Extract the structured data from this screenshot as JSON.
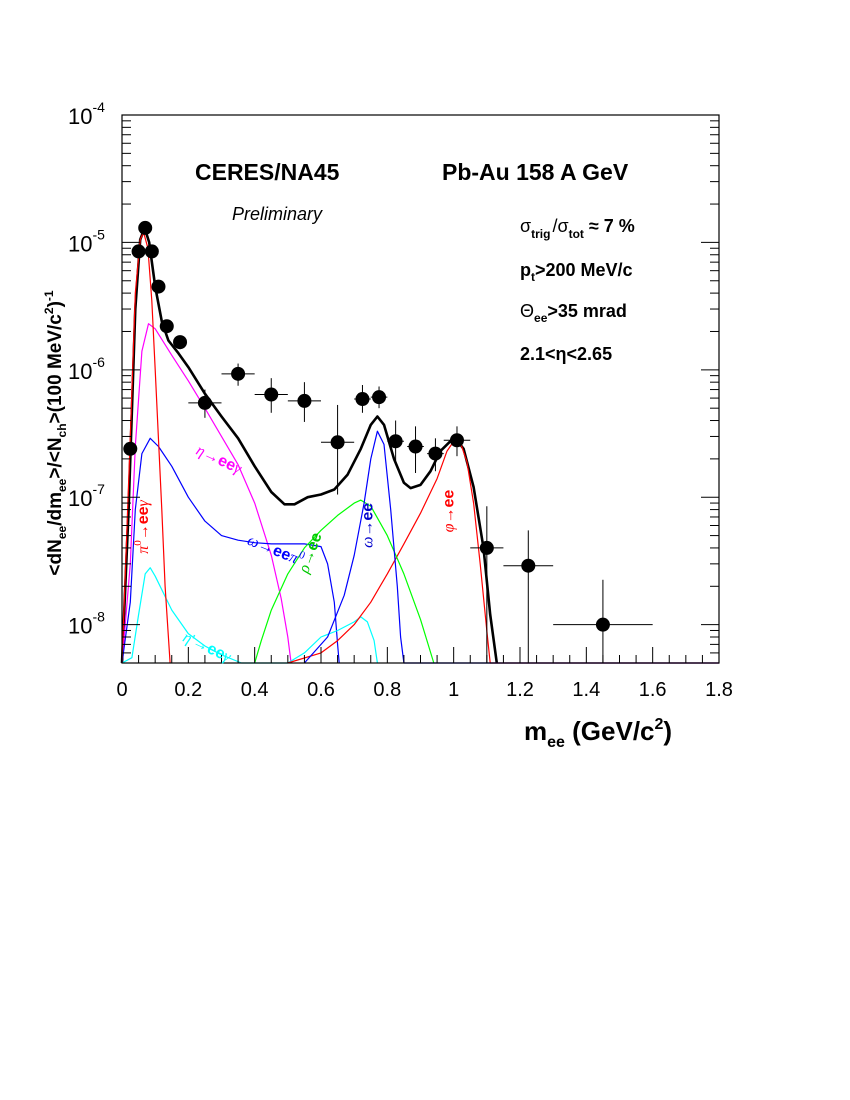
{
  "chart_data": {
    "type": "line",
    "experiment": "CERES/NA45",
    "system": "Pb-Au 158 A GeV",
    "status": "Preliminary",
    "xlabel": {
      "main": "m",
      "sub": "ee",
      "tail1": " (GeV/c",
      "sup": "2",
      "tail2": ")"
    },
    "ylabel": "<dN_ee/dm_ee>/<N_ch>(100 MeV/c^2)^-1",
    "xlim": [
      0,
      1.8
    ],
    "ylim": [
      5e-09,
      0.0001
    ],
    "yscale": "log",
    "x_ticks": [
      "0",
      "0.2",
      "0.4",
      "0.6",
      "0.8",
      "1",
      "1.2",
      "1.4",
      "1.6",
      "1.8"
    ],
    "y_ticks": [
      {
        "base": "10",
        "exp": "-8"
      },
      {
        "base": "10",
        "exp": "-7"
      },
      {
        "base": "10",
        "exp": "-6"
      },
      {
        "base": "10",
        "exp": "-5"
      },
      {
        "base": "10",
        "exp": "-4"
      }
    ],
    "cuts": {
      "trigger": {
        "sym": "σ",
        "sub1": "trig",
        "slash": "/",
        "sub2": "tot",
        "rel": " ≈ 7 %"
      },
      "pt": {
        "main": "p",
        "sub": "t",
        "rest": ">200 MeV/c"
      },
      "theta": {
        "main": "Θ",
        "sub": "ee",
        "rest": ">35 mrad"
      },
      "eta": "2.1<η<2.65"
    },
    "data_points": [
      {
        "x": 0.025,
        "y": 2.4e-07,
        "xerr": 0.0,
        "ylo": 2.4e-07,
        "yhi": 2.4e-07
      },
      {
        "x": 0.05,
        "y": 8.5e-06,
        "xerr": 0.0,
        "ylo": 8.5e-06,
        "yhi": 8.5e-06
      },
      {
        "x": 0.07,
        "y": 1.3e-05,
        "xerr": 0.0,
        "ylo": 1.3e-05,
        "yhi": 1.3e-05
      },
      {
        "x": 0.09,
        "y": 8.5e-06,
        "xerr": 0.0,
        "ylo": 8.5e-06,
        "yhi": 8.5e-06
      },
      {
        "x": 0.11,
        "y": 4.5e-06,
        "xerr": 0.0,
        "ylo": 4.5e-06,
        "yhi": 4.5e-06
      },
      {
        "x": 0.135,
        "y": 2.2e-06,
        "xerr": 0.0,
        "ylo": 2.2e-06,
        "yhi": 2.2e-06
      },
      {
        "x": 0.175,
        "y": 1.65e-06,
        "xerr": 0.0,
        "ylo": 1.45e-06,
        "yhi": 1.85e-06
      },
      {
        "x": 0.25,
        "y": 5.5e-07,
        "xerr": 0.05,
        "ylo": 4.2e-07,
        "yhi": 7e-07
      },
      {
        "x": 0.35,
        "y": 9.3e-07,
        "xerr": 0.05,
        "ylo": 7.5e-07,
        "yhi": 1.12e-06
      },
      {
        "x": 0.45,
        "y": 6.4e-07,
        "xerr": 0.05,
        "ylo": 4.6e-07,
        "yhi": 8.6e-07
      },
      {
        "x": 0.55,
        "y": 5.7e-07,
        "xerr": 0.05,
        "ylo": 3.9e-07,
        "yhi": 8e-07
      },
      {
        "x": 0.65,
        "y": 2.7e-07,
        "xerr": 0.05,
        "ylo": 1.05e-07,
        "yhi": 5.3e-07
      },
      {
        "x": 0.725,
        "y": 5.9e-07,
        "xerr": 0.025,
        "ylo": 4.6e-07,
        "yhi": 7.6e-07
      },
      {
        "x": 0.775,
        "y": 6.1e-07,
        "xerr": 0.025,
        "ylo": 5e-07,
        "yhi": 7.4e-07
      },
      {
        "x": 0.825,
        "y": 2.75e-07,
        "xerr": 0.025,
        "ylo": 1.8e-07,
        "yhi": 4e-07
      },
      {
        "x": 0.885,
        "y": 2.5e-07,
        "xerr": 0.025,
        "ylo": 1.55e-07,
        "yhi": 3.6e-07
      },
      {
        "x": 0.945,
        "y": 2.2e-07,
        "xerr": 0.025,
        "ylo": 1.6e-07,
        "yhi": 2.9e-07
      },
      {
        "x": 1.01,
        "y": 2.8e-07,
        "xerr": 0.04,
        "ylo": 2.1e-07,
        "yhi": 3.6e-07
      },
      {
        "x": 1.1,
        "y": 4e-08,
        "xerr": 0.05,
        "ylo": 5e-09,
        "yhi": 8.5e-08
      },
      {
        "x": 1.225,
        "y": 2.9e-08,
        "xerr": 0.075,
        "ylo": 5e-09,
        "yhi": 5.5e-08
      },
      {
        "x": 1.45,
        "y": 1e-08,
        "xerr": 0.15,
        "ylo": 5e-09,
        "yhi": 2.25e-08
      }
    ],
    "series": [
      {
        "color": "#000000",
        "width": 2.6,
        "points": [
          [
            0.0,
            5e-09
          ],
          [
            0.02,
            8e-08
          ],
          [
            0.04,
            3e-06
          ],
          [
            0.055,
            1.05e-05
          ],
          [
            0.068,
            1.3e-05
          ],
          [
            0.082,
            1e-05
          ],
          [
            0.1,
            4.5e-06
          ],
          [
            0.12,
            2.4e-06
          ],
          [
            0.14,
            1.7e-06
          ],
          [
            0.17,
            1.35e-06
          ],
          [
            0.2,
            1.05e-06
          ],
          [
            0.25,
            6.5e-07
          ],
          [
            0.3,
            4.3e-07
          ],
          [
            0.35,
            2.9e-07
          ],
          [
            0.4,
            1.75e-07
          ],
          [
            0.45,
            1.1e-07
          ],
          [
            0.49,
            8.8e-08
          ],
          [
            0.52,
            8.8e-08
          ],
          [
            0.56,
            1e-07
          ],
          [
            0.6,
            1.05e-07
          ],
          [
            0.64,
            1.15e-07
          ],
          [
            0.68,
            1.5e-07
          ],
          [
            0.72,
            2.4e-07
          ],
          [
            0.75,
            3.7e-07
          ],
          [
            0.77,
            4.3e-07
          ],
          [
            0.79,
            3.7e-07
          ],
          [
            0.82,
            2e-07
          ],
          [
            0.85,
            1.3e-07
          ],
          [
            0.87,
            1.18e-07
          ],
          [
            0.9,
            1.25e-07
          ],
          [
            0.93,
            1.6e-07
          ],
          [
            0.96,
            2.3e-07
          ],
          [
            0.99,
            2.75e-07
          ],
          [
            1.01,
            2.8e-07
          ],
          [
            1.03,
            2.4e-07
          ],
          [
            1.06,
            1.2e-07
          ],
          [
            1.09,
            4e-08
          ],
          [
            1.11,
            1.2e-08
          ],
          [
            1.13,
            5e-09
          ]
        ]
      },
      {
        "color": "#ff00ff",
        "width": 1.2,
        "points": [
          [
            0.0,
            5e-09
          ],
          [
            0.025,
            3e-08
          ],
          [
            0.04,
            2.5e-07
          ],
          [
            0.06,
            1.4e-06
          ],
          [
            0.08,
            2.3e-06
          ],
          [
            0.1,
            2.1e-06
          ],
          [
            0.15,
            1.3e-06
          ],
          [
            0.2,
            8.2e-07
          ],
          [
            0.25,
            5e-07
          ],
          [
            0.3,
            3e-07
          ],
          [
            0.35,
            1.8e-07
          ],
          [
            0.4,
            9e-08
          ],
          [
            0.45,
            3.5e-08
          ],
          [
            0.48,
            1.6e-08
          ],
          [
            0.5,
            8e-09
          ],
          [
            0.51,
            5e-09
          ]
        ]
      },
      {
        "color": "#0000ff",
        "width": 1.2,
        "points": [
          [
            0.0,
            5e-09
          ],
          [
            0.025,
            1.5e-08
          ],
          [
            0.04,
            8e-08
          ],
          [
            0.06,
            2.2e-07
          ],
          [
            0.085,
            2.9e-07
          ],
          [
            0.11,
            2.5e-07
          ],
          [
            0.15,
            1.75e-07
          ],
          [
            0.2,
            1e-07
          ],
          [
            0.25,
            6.5e-08
          ],
          [
            0.3,
            5e-08
          ],
          [
            0.35,
            4.6e-08
          ],
          [
            0.4,
            4.4e-08
          ],
          [
            0.45,
            4.3e-08
          ],
          [
            0.5,
            4.3e-08
          ],
          [
            0.55,
            4.3e-08
          ],
          [
            0.6,
            4.1e-08
          ],
          [
            0.62,
            3e-08
          ],
          [
            0.64,
            1.5e-08
          ],
          [
            0.65,
            7e-09
          ],
          [
            0.655,
            5e-09
          ]
        ]
      },
      {
        "color": "#00ffff",
        "width": 1.2,
        "points": [
          [
            0.0,
            5e-09
          ],
          [
            0.03,
            5.5e-09
          ],
          [
            0.05,
            1.2e-08
          ],
          [
            0.07,
            2.5e-08
          ],
          [
            0.085,
            2.8e-08
          ],
          [
            0.1,
            2.4e-08
          ],
          [
            0.15,
            1.3e-08
          ],
          [
            0.2,
            8.5e-09
          ],
          [
            0.25,
            6.8e-09
          ],
          [
            0.3,
            5.8e-09
          ],
          [
            0.36,
            5e-09
          ],
          [
            0.5,
            5e-09
          ],
          [
            0.55,
            6e-09
          ],
          [
            0.6,
            8e-09
          ],
          [
            0.65,
            9e-09
          ],
          [
            0.7,
            1.05e-08
          ],
          [
            0.72,
            1.15e-08
          ],
          [
            0.74,
            1.05e-08
          ],
          [
            0.76,
            7.5e-09
          ],
          [
            0.77,
            5e-09
          ]
        ]
      },
      {
        "color": "#ff0000",
        "width": 1.2,
        "points": [
          [
            0.0,
            5e-09
          ],
          [
            0.025,
            3e-07
          ],
          [
            0.04,
            4e-06
          ],
          [
            0.055,
            1.05e-05
          ],
          [
            0.065,
            1.2e-05
          ],
          [
            0.078,
            9e-06
          ],
          [
            0.09,
            3.5e-06
          ],
          [
            0.1,
            1e-06
          ],
          [
            0.12,
            8e-08
          ],
          [
            0.13,
            2e-08
          ],
          [
            0.145,
            5e-09
          ]
        ]
      },
      {
        "color": "#ff0000",
        "width": 1.2,
        "points": [
          [
            0.5,
            5e-09
          ],
          [
            0.6,
            6e-09
          ],
          [
            0.65,
            7.5e-09
          ],
          [
            0.7,
            1e-08
          ],
          [
            0.75,
            1.5e-08
          ],
          [
            0.8,
            2.5e-08
          ],
          [
            0.85,
            4.3e-08
          ],
          [
            0.9,
            7.5e-08
          ],
          [
            0.95,
            1.4e-07
          ],
          [
            0.98,
            2.3e-07
          ],
          [
            1.0,
            2.75e-07
          ],
          [
            1.02,
            2.7e-07
          ],
          [
            1.04,
            1.9e-07
          ],
          [
            1.06,
            9e-08
          ],
          [
            1.08,
            3e-08
          ],
          [
            1.1,
            9e-09
          ],
          [
            1.11,
            5e-09
          ],
          [
            1.8,
            5e-09
          ]
        ]
      },
      {
        "color": "#00ff00",
        "width": 1.2,
        "points": [
          [
            0.4,
            5e-09
          ],
          [
            0.42,
            7.5e-09
          ],
          [
            0.45,
            1.3e-08
          ],
          [
            0.5,
            2.5e-08
          ],
          [
            0.55,
            4e-08
          ],
          [
            0.6,
            5.5e-08
          ],
          [
            0.65,
            7.2e-08
          ],
          [
            0.7,
            9e-08
          ],
          [
            0.72,
            9.5e-08
          ],
          [
            0.75,
            8.5e-08
          ],
          [
            0.8,
            5e-08
          ],
          [
            0.85,
            2.5e-08
          ],
          [
            0.9,
            1.1e-08
          ],
          [
            0.94,
            5e-09
          ]
        ]
      },
      {
        "color": "#0000ff",
        "width": 1.2,
        "points": [
          [
            0.55,
            5e-09
          ],
          [
            0.62,
            8e-09
          ],
          [
            0.67,
            1.7e-08
          ],
          [
            0.7,
            3.5e-08
          ],
          [
            0.73,
            9e-08
          ],
          [
            0.75,
            2e-07
          ],
          [
            0.77,
            3.3e-07
          ],
          [
            0.79,
            2.6e-07
          ],
          [
            0.81,
            8e-08
          ],
          [
            0.83,
            2e-08
          ],
          [
            0.84,
            8e-09
          ],
          [
            0.85,
            5e-09
          ],
          [
            1.8,
            5e-09
          ]
        ]
      }
    ],
    "channel_labels": [
      {
        "parts": [
          {
            "t": "η",
            "style": "italic",
            "sub": ""
          },
          {
            "t": "→",
            "style": "normal"
          },
          {
            "t": "ee",
            "style": "bold"
          },
          {
            "t": "γ",
            "style": "italic"
          }
        ],
        "color": "#ff00ff",
        "x": 0.22,
        "y": 2.2e-07,
        "angle": 25
      },
      {
        "parts": [
          {
            "t": "π",
            "style": "italic"
          },
          {
            "t": "0",
            "style": "sup"
          },
          {
            "t": "→",
            "style": "normal"
          },
          {
            "t": "ee",
            "style": "bold"
          },
          {
            "t": "γ",
            "style": "italic"
          }
        ],
        "color": "#ff0000",
        "x": 0.078,
        "y": 3.6e-08,
        "angle": -90
      },
      {
        "parts": [
          {
            "t": "ω",
            "style": "italic"
          },
          {
            "t": "→",
            "style": "normal"
          },
          {
            "t": "ee",
            "style": "bold"
          },
          {
            "t": "π",
            "style": "italic"
          },
          {
            "t": "0",
            "style": "sup"
          }
        ],
        "color": "#0000ff",
        "x": 0.375,
        "y": 4.3e-08,
        "angle": 22
      },
      {
        "parts": [
          {
            "t": "η",
            "style": "italic"
          },
          {
            "t": "'",
            "style": "normal"
          },
          {
            "t": "→",
            "style": "normal"
          },
          {
            "t": "ee",
            "style": "bold"
          },
          {
            "t": "γ",
            "style": "italic"
          }
        ],
        "color": "#00ffff",
        "x": 0.18,
        "y": 7.5e-09,
        "angle": 25
      },
      {
        "parts": [
          {
            "t": "ρ",
            "style": "italic"
          },
          {
            "t": "→",
            "style": "normal"
          },
          {
            "t": "ee",
            "style": "bold"
          }
        ],
        "color": "#00c800",
        "x": 0.56,
        "y": 2.5e-08,
        "angle": -70
      },
      {
        "parts": [
          {
            "t": "ω",
            "style": "italic"
          },
          {
            "t": "→",
            "style": "normal"
          },
          {
            "t": "ee",
            "style": "bold"
          }
        ],
        "color": "#0000cc",
        "x": 0.755,
        "y": 4e-08,
        "angle": -90
      },
      {
        "parts": [
          {
            "t": "φ",
            "style": "italic"
          },
          {
            "t": "→",
            "style": "normal"
          },
          {
            "t": "ee",
            "style": "bold"
          }
        ],
        "color": "#ff0000",
        "x": 1.0,
        "y": 5.3e-08,
        "angle": -90
      }
    ]
  }
}
